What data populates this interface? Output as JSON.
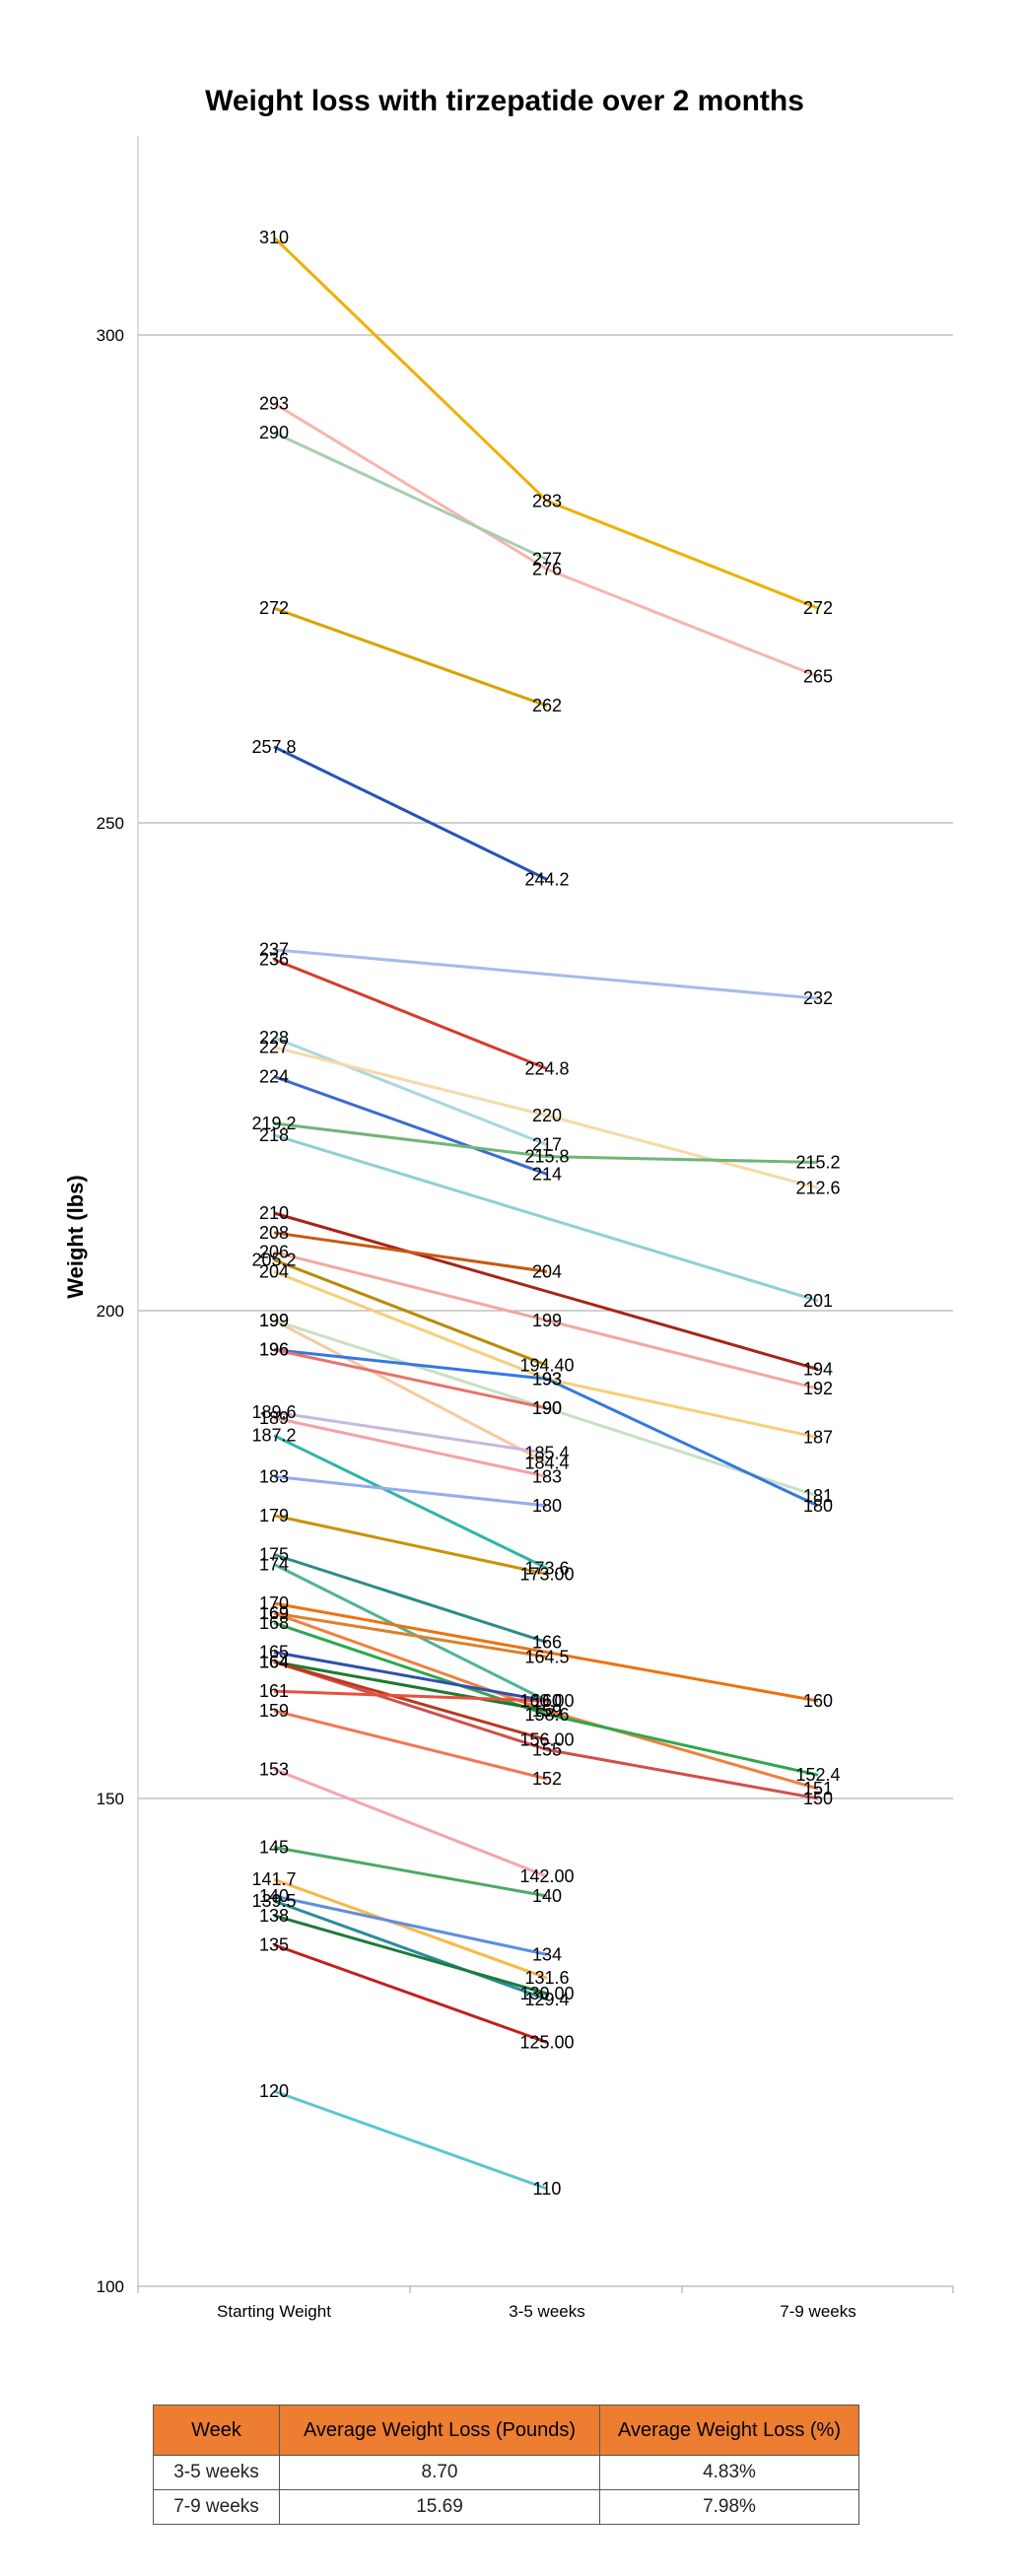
{
  "chart_data": {
    "type": "line",
    "title": "Weight loss with tirzepatide over 2 months",
    "xlabel": "",
    "ylabel": "Weight (lbs)",
    "categories": [
      "Starting Weight",
      "3-5 weeks",
      "7-9 weeks"
    ],
    "ylim": [
      100,
      320
    ],
    "yticks": [
      "100",
      "150",
      "200",
      "250",
      "300"
    ],
    "grid": true,
    "series": [
      {
        "values": [
          310,
          283,
          272
        ],
        "labels": [
          "310",
          "283",
          "272"
        ],
        "color": "#F0B000"
      },
      {
        "values": [
          293,
          276,
          265
        ],
        "labels": [
          "293",
          "276",
          "265"
        ],
        "color": "#F4B6AE"
      },
      {
        "values": [
          290,
          277,
          null
        ],
        "labels": [
          "290",
          "277",
          ""
        ],
        "color": "#A8CDB0"
      },
      {
        "values": [
          272,
          262,
          null
        ],
        "labels": [
          "272",
          "262",
          ""
        ],
        "color": "#D9A300"
      },
      {
        "values": [
          257.8,
          244.2,
          null
        ],
        "labels": [
          "257.8",
          "244.2",
          ""
        ],
        "color": "#2454B8"
      },
      {
        "values": [
          237,
          null,
          232
        ],
        "labels": [
          "237",
          "",
          "232"
        ],
        "color": "#A7B9EE"
      },
      {
        "values": [
          236,
          224.8,
          null
        ],
        "labels": [
          "236",
          "224.8",
          ""
        ],
        "color": "#D83A2E"
      },
      {
        "values": [
          228,
          217,
          null
        ],
        "labels": [
          "228",
          "217",
          ""
        ],
        "color": "#A8D8DE"
      },
      {
        "values": [
          227,
          220,
          212.6
        ],
        "labels": [
          "227",
          "220",
          "212.6"
        ],
        "color": "#F8D8A8"
      },
      {
        "values": [
          224,
          214,
          null
        ],
        "labels": [
          "224",
          "214",
          ""
        ],
        "color": "#3A6BD0"
      },
      {
        "values": [
          219.2,
          215.8,
          215.2
        ],
        "labels": [
          "219.2",
          "215.8",
          "215.2"
        ],
        "color": "#72B47A"
      },
      {
        "values": [
          218,
          null,
          201
        ],
        "labels": [
          "218",
          "",
          "201"
        ],
        "color": "#8FCFD6"
      },
      {
        "values": [
          210,
          null,
          194
        ],
        "labels": [
          "210",
          "",
          "194"
        ],
        "color": "#A82418"
      },
      {
        "values": [
          208,
          204,
          null
        ],
        "labels": [
          "208",
          "204",
          ""
        ],
        "color": "#C65A10"
      },
      {
        "values": [
          206,
          199,
          192
        ],
        "labels": [
          "206",
          "199",
          "192"
        ],
        "color": "#F4A79E"
      },
      {
        "values": [
          205.2,
          194.4,
          null
        ],
        "labels": [
          "205.2",
          "194.40",
          ""
        ],
        "color": "#B98A00"
      },
      {
        "values": [
          204,
          193,
          187
        ],
        "labels": [
          "204",
          "193",
          "187"
        ],
        "color": "#F8CE78"
      },
      {
        "values": [
          199,
          184.4,
          null
        ],
        "labels": [
          "199",
          "184.4",
          ""
        ],
        "color": "#F7C9A0"
      },
      {
        "values": [
          199,
          190,
          181
        ],
        "labels": [
          "199",
          "190",
          "181"
        ],
        "color": "#C8DFC4"
      },
      {
        "values": [
          196,
          193,
          180
        ],
        "labels": [
          "196",
          "193",
          "180"
        ],
        "color": "#3478E0"
      },
      {
        "values": [
          196,
          190,
          null
        ],
        "labels": [
          "196",
          "190",
          ""
        ],
        "color": "#E8736A"
      },
      {
        "values": [
          189.6,
          185.4,
          null
        ],
        "labels": [
          "189.6",
          "185.4",
          ""
        ],
        "color": "#C7B8E0"
      },
      {
        "values": [
          189,
          183,
          null
        ],
        "labels": [
          "189",
          "183",
          ""
        ],
        "color": "#F3A2A8"
      },
      {
        "values": [
          187.2,
          173.6,
          null
        ],
        "labels": [
          "187.2",
          "173.6",
          ""
        ],
        "color": "#30B4A8"
      },
      {
        "values": [
          183,
          180,
          null
        ],
        "labels": [
          "183",
          "180",
          ""
        ],
        "color": "#94ABF0"
      },
      {
        "values": [
          179,
          173,
          null
        ],
        "labels": [
          "179",
          "173.00",
          ""
        ],
        "color": "#C8930A"
      },
      {
        "values": [
          175,
          166,
          null
        ],
        "labels": [
          "175",
          "166",
          ""
        ],
        "color": "#2E8A8A"
      },
      {
        "values": [
          174,
          160,
          null
        ],
        "labels": [
          "174",
          "160",
          ""
        ],
        "color": "#4FB39A"
      },
      {
        "values": [
          170,
          null,
          160
        ],
        "labels": [
          "170",
          "",
          "160"
        ],
        "color": "#EE7210"
      },
      {
        "values": [
          169,
          164.5,
          null
        ],
        "labels": [
          "169",
          "164.5",
          ""
        ],
        "color": "#D9822E"
      },
      {
        "values": [
          169,
          159,
          151
        ],
        "labels": [
          "169",
          "159",
          "151"
        ],
        "color": "#F07F3C"
      },
      {
        "values": [
          168,
          158.6,
          152.4
        ],
        "labels": [
          "168",
          "158.6",
          "152.4"
        ],
        "color": "#2EA84E"
      },
      {
        "values": [
          165,
          160,
          null
        ],
        "labels": [
          "165",
          "160.00",
          ""
        ],
        "color": "#2E50B0"
      },
      {
        "values": [
          164,
          155,
          150
        ],
        "labels": [
          "164",
          "155",
          "150"
        ],
        "color": "#D0504A"
      },
      {
        "values": [
          164,
          159,
          null
        ],
        "labels": [
          "164",
          "159",
          ""
        ],
        "color": "#20782E"
      },
      {
        "values": [
          164,
          156,
          null
        ],
        "labels": [
          "164",
          "156.00",
          ""
        ],
        "color": "#B83A1E"
      },
      {
        "values": [
          161,
          160,
          null
        ],
        "labels": [
          "161",
          "160",
          ""
        ],
        "color": "#E8503E"
      },
      {
        "values": [
          159,
          152,
          null
        ],
        "labels": [
          "159",
          "152",
          ""
        ],
        "color": "#F0784E"
      },
      {
        "values": [
          153,
          142,
          null
        ],
        "labels": [
          "153",
          "142.00",
          ""
        ],
        "color": "#F3A5AE"
      },
      {
        "values": [
          145,
          140,
          null
        ],
        "labels": [
          "145",
          "140",
          ""
        ],
        "color": "#4CAA64"
      },
      {
        "values": [
          141.7,
          131.6,
          null
        ],
        "labels": [
          "141.7",
          "131.6",
          ""
        ],
        "color": "#F8B848"
      },
      {
        "values": [
          140,
          134,
          null
        ],
        "labels": [
          "140",
          "134",
          ""
        ],
        "color": "#5E8EE0"
      },
      {
        "values": [
          139.5,
          129.4,
          null
        ],
        "labels": [
          "139.5",
          "129.4",
          ""
        ],
        "color": "#2C8C9C"
      },
      {
        "values": [
          138,
          130,
          null
        ],
        "labels": [
          "138",
          "130.00",
          ""
        ],
        "color": "#1E7A3A"
      },
      {
        "values": [
          135,
          125,
          null
        ],
        "labels": [
          "135",
          "125.00",
          ""
        ],
        "color": "#C41E1E"
      },
      {
        "values": [
          120,
          110,
          null
        ],
        "labels": [
          "120",
          "110",
          ""
        ],
        "color": "#5CC6D0"
      }
    ]
  },
  "table": {
    "headers": [
      "Week",
      "Average Weight Loss (Pounds)",
      "Average Weight Loss (%)"
    ],
    "rows": [
      [
        "3-5 weeks",
        "8.70",
        "4.83%"
      ],
      [
        "7-9 weeks",
        "15.69",
        "7.98%"
      ]
    ]
  }
}
